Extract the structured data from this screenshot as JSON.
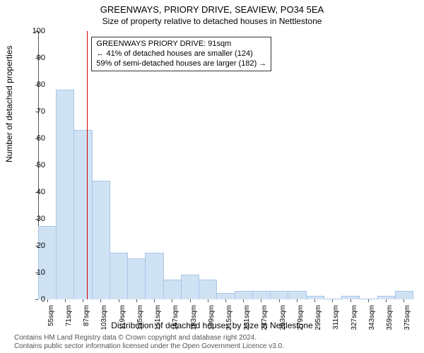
{
  "title": "GREENWAYS, PRIORY DRIVE, SEAVIEW, PO34 5EA",
  "subtitle": "Size of property relative to detached houses in Nettlestone",
  "ylabel": "Number of detached properties",
  "xlabel": "Distribution of detached houses by size in Nettlestone",
  "footer_line1": "Contains HM Land Registry data © Crown copyright and database right 2024.",
  "footer_line2": "Contains public sector information licensed under the Open Government Licence v3.0.",
  "chart": {
    "type": "histogram",
    "ylim": [
      0,
      100
    ],
    "ytick_step": 10,
    "xtick_start": 55,
    "xtick_step": 16,
    "xtick_count": 21,
    "xtick_unit": "sqm",
    "bar_fill": "#cfe2f3",
    "bar_stroke": "#a9c6e8",
    "background": "#ffffff",
    "axis_color": "#555555",
    "values": [
      27,
      78,
      63,
      44,
      17,
      15,
      17,
      7,
      9,
      7,
      2,
      3,
      3,
      3,
      3,
      1,
      0,
      1,
      0,
      1,
      3
    ],
    "marker": {
      "position_sqm": 91,
      "color": "#cc0000"
    },
    "annotation": {
      "line1": "GREENWAYS PRIORY DRIVE: 91sqm",
      "line2": "← 41% of detached houses are smaller (124)",
      "line3": "59% of semi-detached houses are larger (182) →"
    }
  }
}
